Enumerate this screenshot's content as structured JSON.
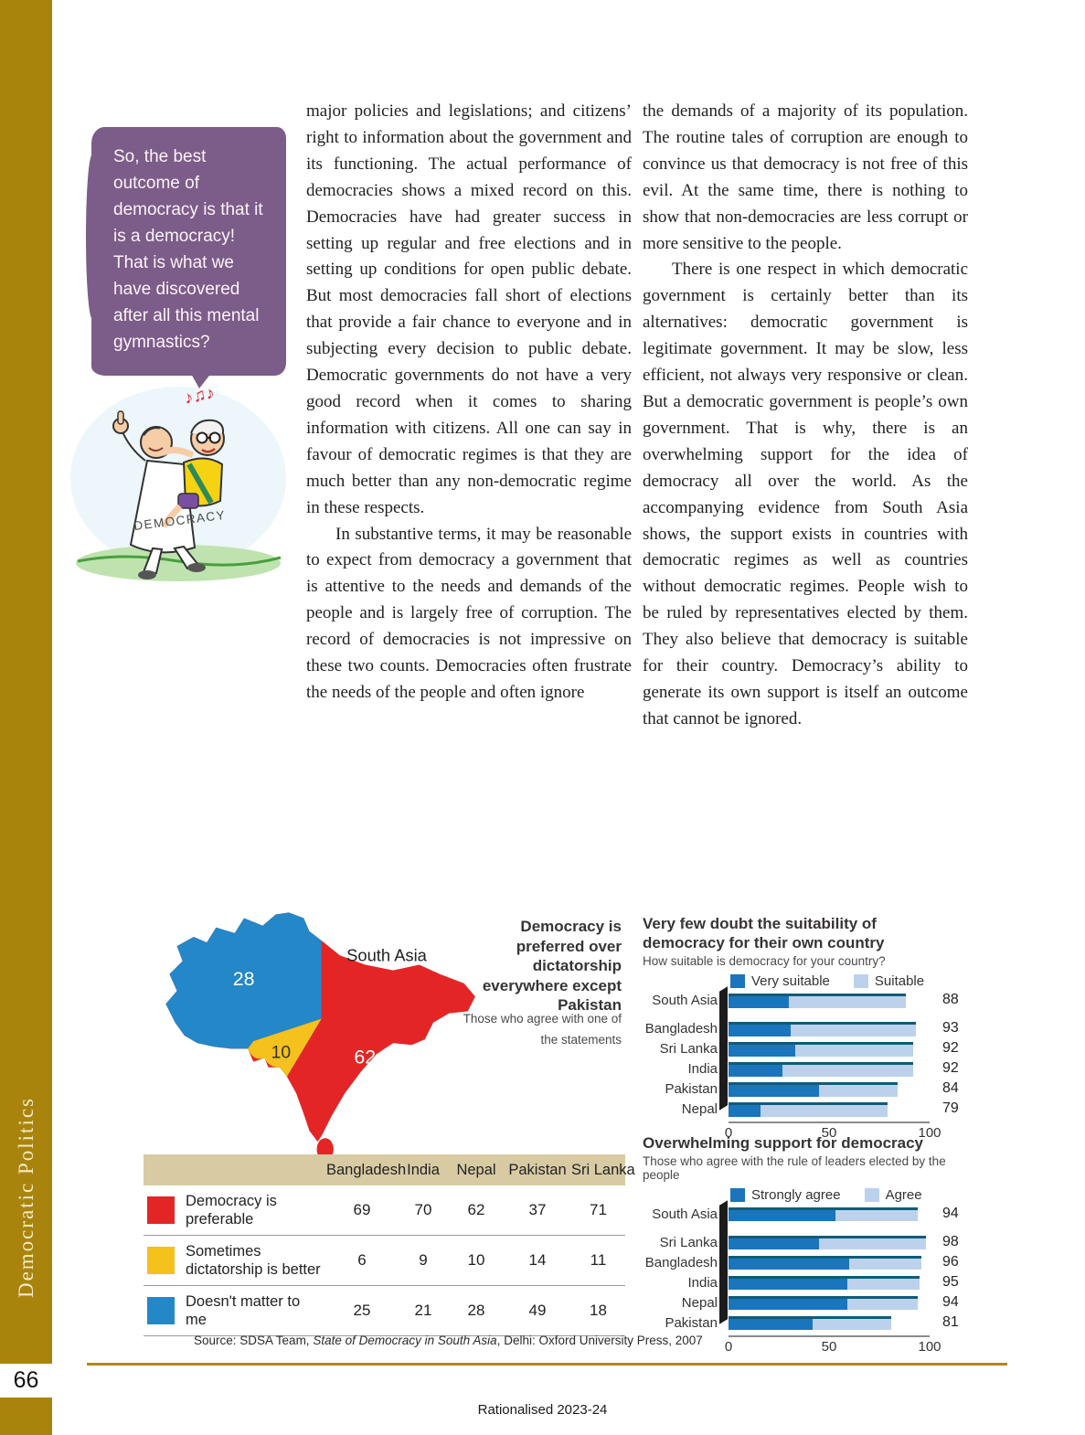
{
  "page": {
    "number": "66",
    "vertical_label": "Democratic Politics",
    "footer": "Rationalised 2023-24"
  },
  "speech_bubble": {
    "text": "So, the best outcome of democracy is that it is a democracy! That is what we have discovered after all this mental gymnastics?"
  },
  "cartoon": {
    "robe_label": "DEMOCRACY",
    "music_notes": "♪♫♪"
  },
  "article": {
    "left_column": {
      "p1": "major policies and legislations; and citizens’ right to information about the government and its functioning. The actual performance of democracies shows a mixed record on this. Democracies have had greater success in setting up regular and free elections and in setting up conditions for open public debate. But most democracies fall short of elections that provide a fair chance to everyone and in subjecting every decision to public debate. Democratic governments do not have a very good record when it comes to sharing information with citizens. All one can say in favour of democratic regimes is that they are much better than any non-democratic regime in these respects.",
      "p2": "In substantive terms, it may be reasonable to expect from democracy a government that is attentive to the needs and demands of the people and is largely free of corruption. The record of democracies is not impressive on these two counts. Democracies often frustrate the needs of the people and often ignore"
    },
    "right_column": {
      "p1": "the demands of a majority of its population. The routine tales of corruption are enough to convince us that democracy is not free of this evil. At the same time, there is nothing to show that non-democracies are less corrupt or more sensitive to the people.",
      "p2": "There is one respect in which democratic government is certainly better than its alternatives: democratic government is legitimate government. It may be slow, less efficient, not always very responsive or clean. But a democratic government is people’s own government. That is why, there is an overwhelming support for the idea of democracy all over the world. As the accompanying evidence from South Asia shows, the support exists in countries with democratic regimes as well as countries without democratic regimes. People wish to be ruled by representatives elected by them. They also believe that democracy is suitable for their country. Democracy’s ability to generate its own support is itself an outcome that cannot be ignored."
    }
  },
  "figure": {
    "map": {
      "region_label": "South Asia",
      "label_blue": "28",
      "label_yellow": "10",
      "label_red": "62"
    },
    "caption": "Democracy is preferred over dictatorship everywhere except Pakistan",
    "subcaption": "Those who agree with one of the statements",
    "source": {
      "prefix": "Source: SDSA Team, ",
      "title_italic": "State of Democracy in South Asia",
      "suffix": ", Delhi: Oxford University Press, 2007"
    }
  },
  "chart_data": [
    {
      "type": "pie",
      "title": "Democracy is preferred over dictatorship everywhere except Pakistan",
      "subtitle": "Those who agree with one of the statements",
      "region": "South Asia",
      "slices": [
        {
          "label": "Democracy is preferable",
          "value": 62,
          "color": "#e32526"
        },
        {
          "label": "Sometimes dictatorship is better",
          "value": 10,
          "color": "#f4c11d"
        },
        {
          "label": "Doesn't matter to me",
          "value": 28,
          "color": "#2387c8"
        }
      ]
    },
    {
      "type": "table",
      "columns": [
        "Bangladesh",
        "India",
        "Nepal",
        "Pakistan",
        "Sri Lanka"
      ],
      "rows": [
        {
          "label": "Democracy is preferable",
          "swatch": "#e32526",
          "values": [
            69,
            70,
            62,
            37,
            71
          ]
        },
        {
          "label": "Sometimes dictatorship is better",
          "swatch": "#f4c11d",
          "values": [
            6,
            9,
            10,
            14,
            11
          ]
        },
        {
          "label": "Doesn't matter to me",
          "swatch": "#2387c8",
          "values": [
            25,
            21,
            28,
            49,
            18
          ]
        }
      ]
    },
    {
      "type": "bar",
      "title": "Very few doubt the suitability of democracy for their own country",
      "subtitle": "How suitable is democracy for your country?",
      "legend": [
        "Very suitable",
        "Suitable"
      ],
      "categories": [
        "South Asia",
        "Bangladesh",
        "Sri Lanka",
        "India",
        "Pakistan",
        "Nepal"
      ],
      "series": [
        {
          "name": "Very suitable",
          "values": [
            30,
            31,
            33,
            27,
            45,
            16
          ]
        },
        {
          "name": "Suitable",
          "values": [
            58,
            62,
            59,
            65,
            39,
            63
          ]
        }
      ],
      "totals": [
        88,
        93,
        92,
        92,
        84,
        79
      ],
      "xlim": [
        0,
        100
      ],
      "xticks": [
        0,
        50,
        100
      ],
      "colors": {
        "dark": "#1b75bc",
        "light": "#bcd2ec"
      }
    },
    {
      "type": "bar",
      "title": "Overwhelming support for democracy",
      "subtitle": "Those who agree with the rule of leaders elected by the people",
      "legend": [
        "Strongly agree",
        "Agree"
      ],
      "categories": [
        "South Asia",
        "Sri Lanka",
        "Bangladesh",
        "India",
        "Nepal",
        "Pakistan"
      ],
      "series": [
        {
          "name": "Strongly agree",
          "values": [
            53,
            45,
            60,
            59,
            59,
            42
          ]
        },
        {
          "name": "Agree",
          "values": [
            41,
            53,
            36,
            36,
            35,
            39
          ]
        }
      ],
      "totals": [
        94,
        98,
        96,
        95,
        94,
        81
      ],
      "xlim": [
        0,
        100
      ],
      "xticks": [
        0,
        50,
        100
      ],
      "colors": {
        "dark": "#1b75bc",
        "light": "#bcd2ec"
      }
    }
  ],
  "colors": {
    "sidebar_gold": "#a9840d",
    "bubble_purple": "#7c5c88",
    "map_red": "#e32526",
    "map_blue": "#2387c8",
    "map_yellow": "#f4c11d",
    "table_header_tan": "#d8cba4",
    "bar_dark_blue": "#1b75bc",
    "bar_light_blue": "#bcd2ec",
    "bar_cap_teal": "#0e5c78"
  }
}
